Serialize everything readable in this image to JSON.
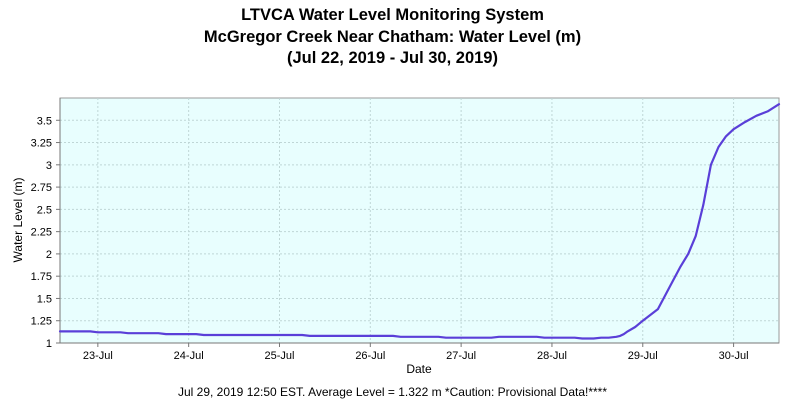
{
  "chart_data": {
    "type": "line",
    "title": [
      "LTVCA Water Level Monitoring System",
      "McGregor Creek Near Chatham: Water Level (m)",
      "(Jul 22, 2019 - Jul 30, 2019)"
    ],
    "xlabel": "Date",
    "ylabel": "Water Level (m)",
    "x_axis": {
      "start": "2019-07-22 14:00",
      "end": "2019-07-30 12:00",
      "tick_labels": [
        "23-Jul",
        "24-Jul",
        "25-Jul",
        "26-Jul",
        "27-Jul",
        "28-Jul",
        "29-Jul",
        "30-Jul"
      ],
      "tick_dates": [
        "2019-07-23",
        "2019-07-24",
        "2019-07-25",
        "2019-07-26",
        "2019-07-27",
        "2019-07-28",
        "2019-07-29",
        "2019-07-30"
      ]
    },
    "ylim": [
      1,
      3.75
    ],
    "yticks": [
      1,
      1.25,
      1.5,
      1.75,
      2,
      2.25,
      2.5,
      2.75,
      3,
      3.25,
      3.5
    ],
    "ytick_labels": [
      "1",
      "1.25",
      "1.5",
      "1.75",
      "2",
      "2.25",
      "2.5",
      "2.75",
      "3",
      "3.25",
      "3.5"
    ],
    "grid": true,
    "series": [
      {
        "name": "",
        "color": "#5a3fd8",
        "x": [
          "2019-07-22 14:00",
          "2019-07-22 22:00",
          "2019-07-23 00:00",
          "2019-07-23 06:00",
          "2019-07-23 08:00",
          "2019-07-23 16:00",
          "2019-07-23 18:00",
          "2019-07-24 02:00",
          "2019-07-24 04:00",
          "2019-07-25 06:00",
          "2019-07-25 08:00",
          "2019-07-26 06:00",
          "2019-07-26 08:00",
          "2019-07-26 18:00",
          "2019-07-26 20:00",
          "2019-07-27 08:00",
          "2019-07-27 10:00",
          "2019-07-27 20:00",
          "2019-07-27 22:00",
          "2019-07-28 06:00",
          "2019-07-28 08:00",
          "2019-07-28 11:00",
          "2019-07-28 13:00",
          "2019-07-28 15:00",
          "2019-07-28 17:00",
          "2019-07-28 18:00",
          "2019-07-28 19:00",
          "2019-07-28 20:00",
          "2019-07-28 22:00",
          "2019-07-29 00:00",
          "2019-07-29 04:00",
          "2019-07-29 08:00",
          "2019-07-29 10:00",
          "2019-07-29 12:00",
          "2019-07-29 14:00",
          "2019-07-29 16:00",
          "2019-07-29 18:00",
          "2019-07-29 20:00",
          "2019-07-29 22:00",
          "2019-07-30 00:00",
          "2019-07-30 03:00",
          "2019-07-30 06:00",
          "2019-07-30 09:00",
          "2019-07-30 12:00"
        ],
        "y": [
          1.13,
          1.13,
          1.12,
          1.12,
          1.11,
          1.11,
          1.1,
          1.1,
          1.09,
          1.09,
          1.08,
          1.08,
          1.07,
          1.07,
          1.06,
          1.06,
          1.07,
          1.07,
          1.06,
          1.06,
          1.05,
          1.05,
          1.06,
          1.06,
          1.07,
          1.08,
          1.1,
          1.13,
          1.18,
          1.25,
          1.38,
          1.7,
          1.86,
          2.0,
          2.2,
          2.55,
          3.0,
          3.2,
          3.32,
          3.4,
          3.48,
          3.55,
          3.6,
          3.68
        ]
      }
    ]
  },
  "footer": "Jul 29, 2019 12:50 EST. Average Level = 1.322 m  *Caution: Provisional Data!****"
}
